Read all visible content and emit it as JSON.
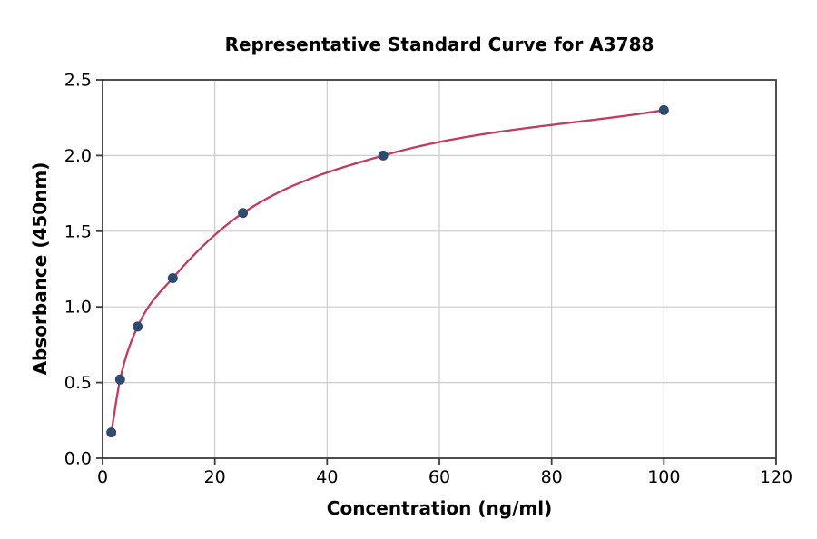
{
  "chart_data": {
    "type": "scatter",
    "title": "Representative Standard Curve for A3788",
    "xlabel": "Concentration (ng/ml)",
    "ylabel": "Absorbance (450nm)",
    "xlim": [
      0,
      120
    ],
    "ylim": [
      0,
      2.5
    ],
    "x_ticks": [
      0,
      20,
      40,
      60,
      80,
      100,
      120
    ],
    "x_tick_labels": [
      "0",
      "20",
      "40",
      "60",
      "80",
      "100",
      "120"
    ],
    "y_ticks": [
      0.0,
      0.5,
      1.0,
      1.5,
      2.0,
      2.5
    ],
    "y_tick_labels": [
      "0.0",
      "0.5",
      "1.0",
      "1.5",
      "2.0",
      "2.5"
    ],
    "grid": true,
    "legend": "none",
    "series": [
      {
        "name": "standards",
        "type": "scatter",
        "color": "#2e4a6e",
        "x": [
          1.56,
          3.12,
          6.25,
          12.5,
          25,
          50,
          100
        ],
        "y": [
          0.17,
          0.52,
          0.87,
          1.19,
          1.62,
          2.0,
          2.3
        ]
      },
      {
        "name": "fit-curve",
        "type": "line",
        "color": "#c13a5f",
        "smooth_through": "standards"
      }
    ],
    "colors": {
      "background": "#ffffff",
      "spine": "#3c3c3c",
      "grid": "#cccccc",
      "text": "#000000",
      "curve": "#c13a5f",
      "marker": "#2e4a6e"
    }
  }
}
